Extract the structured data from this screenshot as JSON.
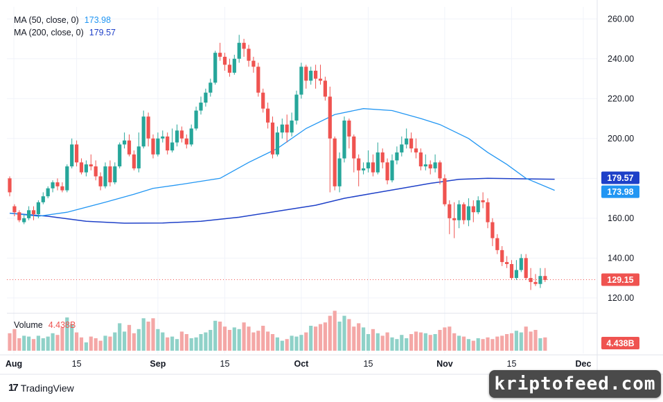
{
  "legend": {
    "ma50_label": "MA (50, close, 0)",
    "ma50_value": "173.98",
    "ma200_label": "MA (200, close, 0)",
    "ma200_value": "179.57",
    "volume_label": "Volume",
    "volume_value": "4.438B"
  },
  "price_axis": {
    "ticks": [
      "260.00",
      "240.00",
      "220.00",
      "200.00",
      "180.00",
      "160.00",
      "140.00",
      "120.00"
    ],
    "ma200_badge": "179.57",
    "ma50_badge": "173.98",
    "last_price_badge": "129.15",
    "volume_badge": "4.438B"
  },
  "time_axis": {
    "labels": [
      "Aug",
      "15",
      "Sep",
      "15",
      "Oct",
      "15",
      "Nov",
      "15",
      "Dec"
    ]
  },
  "colors": {
    "up": "#26a69a",
    "down": "#ef5350",
    "vol_up": "#8fd1c8",
    "vol_down": "#f4a7a6",
    "ma50": "#2196f3",
    "ma200": "#1e40c8",
    "badge_ma200": "#1e40c8",
    "badge_ma50": "#2196f3",
    "badge_last": "#ef5350"
  },
  "branding": {
    "tradingview": "TradingView",
    "tv_mark": "17",
    "watermark": "kriptofeed.com"
  },
  "chart_data": {
    "type": "candlestick",
    "price_ylim": [
      113,
      266
    ],
    "price_ticks": [
      260,
      240,
      220,
      200,
      180,
      160,
      140,
      120
    ],
    "last_price": 129.15,
    "candles": [
      [
        180,
        173,
        181,
        171
      ],
      [
        166,
        163,
        167,
        161
      ],
      [
        163,
        159,
        164,
        158
      ],
      [
        158,
        160,
        162,
        157
      ],
      [
        160,
        164,
        166,
        159
      ],
      [
        164,
        162,
        166,
        159
      ],
      [
        162,
        168,
        169,
        160
      ],
      [
        168,
        171,
        173,
        167
      ],
      [
        171,
        175,
        176,
        170
      ],
      [
        175,
        178,
        179,
        173
      ],
      [
        178,
        176,
        180,
        174
      ],
      [
        176,
        174,
        178,
        173
      ],
      [
        174,
        186,
        187,
        173
      ],
      [
        186,
        197,
        200,
        185
      ],
      [
        197,
        188,
        199,
        186
      ],
      [
        188,
        183,
        190,
        182
      ],
      [
        183,
        187,
        189,
        181
      ],
      [
        187,
        186,
        192,
        184
      ],
      [
        186,
        181,
        189,
        179
      ],
      [
        181,
        176,
        183,
        174
      ],
      [
        176,
        186,
        188,
        175
      ],
      [
        186,
        178,
        189,
        176
      ],
      [
        178,
        186,
        188,
        177
      ],
      [
        186,
        197,
        198,
        185
      ],
      [
        197,
        199,
        203,
        195
      ],
      [
        199,
        192,
        202,
        191
      ],
      [
        192,
        185,
        194,
        184
      ],
      [
        185,
        196,
        203,
        183
      ],
      [
        196,
        211,
        214,
        195
      ],
      [
        211,
        200,
        213,
        196
      ],
      [
        200,
        192,
        202,
        190
      ],
      [
        192,
        200,
        203,
        191
      ],
      [
        200,
        201,
        204,
        198
      ],
      [
        201,
        194,
        203,
        192
      ],
      [
        194,
        198,
        205,
        193
      ],
      [
        198,
        204,
        207,
        196
      ],
      [
        204,
        200,
        206,
        198
      ],
      [
        200,
        197,
        202,
        195
      ],
      [
        197,
        205,
        207,
        196
      ],
      [
        205,
        214,
        216,
        204
      ],
      [
        214,
        218,
        221,
        212
      ],
      [
        218,
        223,
        225,
        216
      ],
      [
        223,
        228,
        230,
        221
      ],
      [
        228,
        243,
        244,
        227
      ],
      [
        243,
        241,
        248,
        239
      ],
      [
        241,
        237,
        243,
        234
      ],
      [
        237,
        233,
        240,
        231
      ],
      [
        233,
        240,
        242,
        232
      ],
      [
        240,
        248,
        252,
        238
      ],
      [
        248,
        245,
        250,
        241
      ],
      [
        245,
        239,
        247,
        236
      ],
      [
        239,
        236,
        241,
        233
      ],
      [
        236,
        223,
        238,
        221
      ],
      [
        223,
        215,
        225,
        213
      ],
      [
        215,
        208,
        218,
        205
      ],
      [
        208,
        192,
        211,
        190
      ],
      [
        192,
        203,
        206,
        191
      ],
      [
        203,
        207,
        210,
        200
      ],
      [
        207,
        203,
        212,
        198
      ],
      [
        203,
        209,
        213,
        201
      ],
      [
        209,
        222,
        224,
        207
      ],
      [
        222,
        236,
        238,
        220
      ],
      [
        236,
        229,
        237,
        225
      ],
      [
        229,
        234,
        236,
        227
      ],
      [
        234,
        230,
        237,
        225
      ],
      [
        230,
        229,
        237,
        227
      ],
      [
        229,
        221,
        231,
        219
      ],
      [
        221,
        200,
        226,
        173
      ],
      [
        200,
        176,
        201,
        174
      ],
      [
        176,
        190,
        193,
        173
      ],
      [
        190,
        209,
        211,
        188
      ],
      [
        209,
        201,
        210,
        195
      ],
      [
        201,
        190,
        202,
        183
      ],
      [
        190,
        184,
        192,
        176
      ],
      [
        184,
        185,
        188,
        182
      ],
      [
        185,
        188,
        194,
        183
      ],
      [
        188,
        183,
        192,
        181
      ],
      [
        183,
        193,
        198,
        182
      ],
      [
        193,
        188,
        195,
        185
      ],
      [
        188,
        179,
        190,
        177
      ],
      [
        179,
        189,
        192,
        178
      ],
      [
        189,
        193,
        196,
        187
      ],
      [
        193,
        197,
        201,
        191
      ],
      [
        197,
        200,
        205,
        195
      ],
      [
        200,
        195,
        203,
        193
      ],
      [
        195,
        193,
        200,
        190
      ],
      [
        193,
        186,
        195,
        184
      ],
      [
        186,
        187,
        192,
        184
      ],
      [
        187,
        185,
        189,
        182
      ],
      [
        185,
        188,
        192,
        183
      ],
      [
        188,
        180,
        189,
        177
      ],
      [
        180,
        167,
        182,
        166
      ],
      [
        167,
        160,
        169,
        152
      ],
      [
        160,
        159,
        168,
        150
      ],
      [
        159,
        167,
        169,
        155
      ],
      [
        167,
        159,
        168,
        157
      ],
      [
        159,
        166,
        170,
        156
      ],
      [
        166,
        163,
        169,
        158
      ],
      [
        163,
        169,
        171,
        162
      ],
      [
        169,
        168,
        173,
        165
      ],
      [
        168,
        158,
        170,
        155
      ],
      [
        158,
        150,
        160,
        146
      ],
      [
        150,
        144,
        152,
        142
      ],
      [
        144,
        138,
        146,
        136
      ],
      [
        138,
        137,
        141,
        135
      ],
      [
        137,
        130,
        139,
        129
      ],
      [
        130,
        134,
        139,
        129
      ],
      [
        134,
        140,
        142,
        133
      ],
      [
        140,
        130,
        142,
        129
      ],
      [
        130,
        128,
        135,
        124
      ],
      [
        128,
        127,
        132,
        126
      ],
      [
        127,
        131,
        135,
        125
      ],
      [
        131,
        129,
        135,
        128
      ]
    ],
    "volume_ylim": [
      0,
      1
    ],
    "volumes": [
      0.42,
      0.52,
      0.3,
      0.36,
      0.34,
      0.28,
      0.36,
      0.3,
      0.34,
      0.42,
      0.38,
      0.56,
      0.8,
      0.64,
      0.44,
      0.32,
      0.2,
      0.34,
      0.3,
      0.24,
      0.36,
      0.34,
      0.44,
      0.66,
      0.46,
      0.62,
      0.42,
      0.52,
      0.78,
      0.7,
      0.78,
      0.52,
      0.44,
      0.32,
      0.34,
      0.28,
      0.46,
      0.4,
      0.3,
      0.32,
      0.4,
      0.44,
      0.5,
      0.72,
      0.7,
      0.58,
      0.5,
      0.56,
      0.52,
      0.68,
      0.58,
      0.44,
      0.48,
      0.6,
      0.46,
      0.4,
      0.32,
      0.24,
      0.28,
      0.36,
      0.34,
      0.38,
      0.44,
      0.6,
      0.58,
      0.64,
      0.68,
      0.84,
      0.96,
      0.7,
      0.84,
      0.76,
      0.58,
      0.66,
      0.56,
      0.4,
      0.52,
      0.42,
      0.36,
      0.44,
      0.32,
      0.28,
      0.38,
      0.3,
      0.4,
      0.46,
      0.44,
      0.42,
      0.38,
      0.4,
      0.5,
      0.56,
      0.58,
      0.42,
      0.36,
      0.34,
      0.28,
      0.24,
      0.3,
      0.28,
      0.32,
      0.28,
      0.34,
      0.36,
      0.4,
      0.42,
      0.48,
      0.44,
      0.58,
      0.46,
      0.5,
      0.3,
      0.32
    ],
    "ma50": [
      [
        0,
        162.5
      ],
      [
        6,
        161
      ],
      [
        12,
        163
      ],
      [
        20,
        168
      ],
      [
        26,
        172
      ],
      [
        30,
        175
      ],
      [
        36,
        177
      ],
      [
        44,
        180
      ],
      [
        50,
        188
      ],
      [
        56,
        195
      ],
      [
        62,
        205
      ],
      [
        68,
        212
      ],
      [
        74,
        215
      ],
      [
        80,
        214
      ],
      [
        86,
        210
      ],
      [
        90,
        207
      ],
      [
        96,
        200
      ],
      [
        100,
        193
      ],
      [
        104,
        187
      ],
      [
        108,
        180
      ],
      [
        114,
        173.98
      ]
    ],
    "ma200": [
      [
        0,
        162.5
      ],
      [
        8,
        161
      ],
      [
        16,
        158.5
      ],
      [
        24,
        157.5
      ],
      [
        32,
        157.6
      ],
      [
        40,
        158.5
      ],
      [
        48,
        160.5
      ],
      [
        56,
        163.5
      ],
      [
        64,
        166.5
      ],
      [
        70,
        170
      ],
      [
        76,
        172.5
      ],
      [
        82,
        175
      ],
      [
        88,
        177.5
      ],
      [
        94,
        179.5
      ],
      [
        100,
        180
      ],
      [
        106,
        179.8
      ],
      [
        114,
        179.57
      ]
    ]
  }
}
